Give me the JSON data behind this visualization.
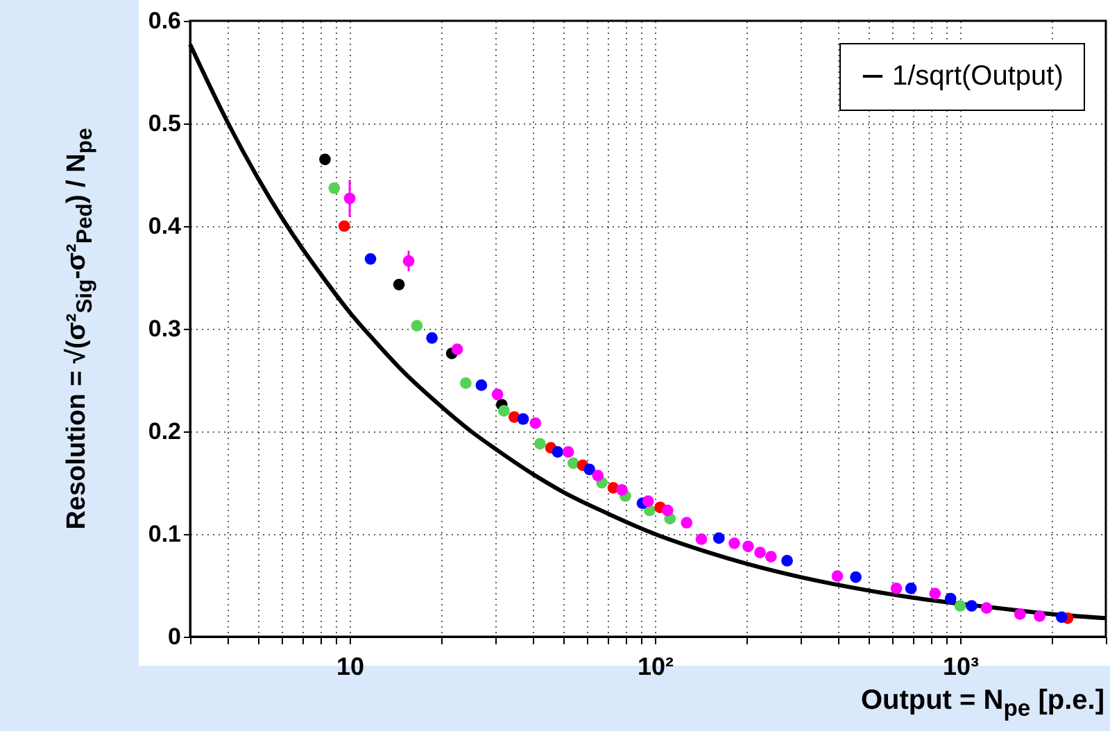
{
  "chart_data": {
    "type": "scatter",
    "xlabel": "Output = N$_{pe}$ [p.e.]",
    "ylabel": "Resolution = √(σ²$_{Sig}$-σ²$_{Ped}$) / N$_{pe}$",
    "log": "x",
    "grid": true,
    "marker": "circle",
    "legend": "top right",
    "xlim": [
      3,
      3000
    ],
    "ylim": [
      0,
      0.6
    ],
    "xticks": [
      {
        "value": 3,
        "label": null
      },
      {
        "value": 4,
        "label": null
      },
      {
        "value": 5,
        "label": null
      },
      {
        "value": 6,
        "label": null
      },
      {
        "value": 7,
        "label": null
      },
      {
        "value": 8,
        "label": null
      },
      {
        "value": 9,
        "label": null
      },
      10,
      {
        "value": 20,
        "label": null
      },
      {
        "value": 30,
        "label": null
      },
      {
        "value": 40,
        "label": null
      },
      {
        "value": 50,
        "label": null
      },
      {
        "value": 60,
        "label": null
      },
      {
        "value": 70,
        "label": null
      },
      {
        "value": 80,
        "label": null
      },
      {
        "value": 90,
        "label": null
      },
      {
        "value": 100,
        "label": "10²"
      },
      {
        "value": 200,
        "label": null
      },
      {
        "value": 300,
        "label": null
      },
      {
        "value": 400,
        "label": null
      },
      {
        "value": 500,
        "label": null
      },
      {
        "value": 600,
        "label": null
      },
      {
        "value": 700,
        "label": null
      },
      {
        "value": 800,
        "label": null
      },
      {
        "value": 900,
        "label": null
      },
      {
        "value": 1000,
        "label": "10³"
      },
      {
        "value": 2000,
        "label": null
      },
      {
        "value": 3000,
        "label": null
      }
    ],
    "yticks": [
      0,
      0.1,
      0.2,
      0.3,
      0.4,
      0.5,
      0.6
    ],
    "series": [
      {
        "type": "line",
        "name": "1/sqrt(Output)",
        "color": "#000000",
        "line_style": "solid",
        "marker": "none",
        "x": [
          3,
          4,
          5,
          6,
          7,
          8,
          10,
          12,
          15,
          20,
          25,
          30,
          40,
          50,
          70,
          100,
          150,
          200,
          300,
          500,
          700,
          1000,
          1500,
          2000,
          3000
        ],
        "values": [
          0.577,
          0.5,
          0.447,
          0.408,
          0.378,
          0.354,
          0.316,
          0.289,
          0.258,
          0.224,
          0.2,
          0.183,
          0.158,
          0.141,
          0.12,
          0.1,
          0.082,
          0.071,
          0.058,
          0.045,
          0.038,
          0.032,
          0.026,
          0.022,
          0.018
        ]
      },
      {
        "color": "#000000",
        "x": [
          8.3,
          14.5,
          21.6,
          31.5
        ],
        "values": [
          0.465,
          0.343,
          0.276,
          0.226
        ]
      },
      {
        "color": "#55d155",
        "x": [
          8.9,
          16.6,
          24,
          32,
          42,
          54,
          67,
          80,
          96,
          112,
          1000
        ],
        "values": [
          0.437,
          0.303,
          0.247,
          0.22,
          0.188,
          0.169,
          0.15,
          0.137,
          0.123,
          0.115,
          0.03
        ]
      },
      {
        "color": "#ff0000",
        "x": [
          9.6,
          34.6,
          45.6,
          58,
          73,
          104,
          2250
        ],
        "values": [
          0.4,
          0.214,
          0.184,
          0.167,
          0.145,
          0.126,
          0.018
        ]
      },
      {
        "color": "#0000ff",
        "x": [
          11.7,
          18.6,
          27,
          37,
          48,
          61,
          91,
          162,
          271,
          455,
          690,
          930,
          1090,
          2150
        ],
        "values": [
          0.368,
          0.291,
          0.245,
          0.212,
          0.18,
          0.163,
          0.13,
          0.096,
          0.074,
          0.058,
          0.047,
          0.037,
          0.03,
          0.019
        ]
      },
      {
        "color": "#ff00ff",
        "x": [
          10,
          15.6,
          22.5,
          30.5,
          40.6,
          52,
          65,
          78,
          95,
          110,
          127,
          142,
          182,
          202,
          221,
          240,
          396,
          618,
          827,
          1220,
          1570,
          1820
        ],
        "values": [
          0.427,
          0.366,
          0.28,
          0.236,
          0.208,
          0.18,
          0.157,
          0.143,
          0.132,
          0.123,
          0.111,
          0.095,
          0.091,
          0.088,
          0.082,
          0.078,
          0.059,
          0.047,
          0.042,
          0.028,
          0.022,
          0.02
        ],
        "errors": [
          0.018,
          0.01,
          null,
          null,
          null,
          null,
          null,
          null,
          null,
          null,
          null,
          null,
          null,
          null,
          null,
          null,
          null,
          null,
          null,
          null,
          null,
          null
        ]
      }
    ]
  }
}
